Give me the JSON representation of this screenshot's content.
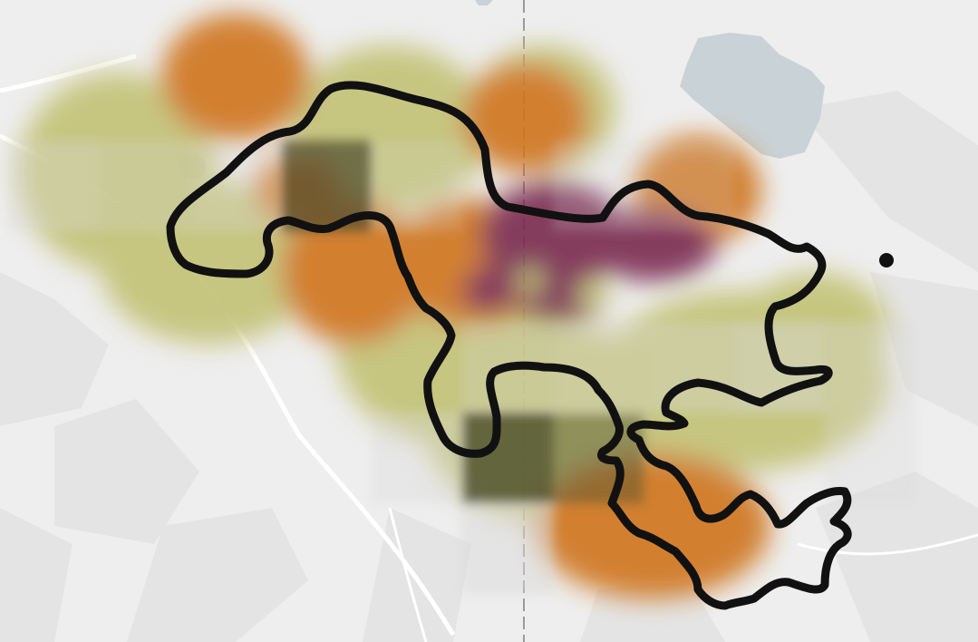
{
  "map": {
    "view": "map-view",
    "colors": {
      "background": "#eeeeee",
      "terrain_shade": "#dcdcdc",
      "road": "#ffffff",
      "water": "#c9d2d6",
      "heat_low": "#c2c276",
      "heat_mid": "#cf741f",
      "heat_high": "#7a2a4f",
      "grid_cell_light": "#d9d9d9",
      "grid_cell_dark": "#4b4d2c",
      "boundary": "#111111"
    }
  }
}
